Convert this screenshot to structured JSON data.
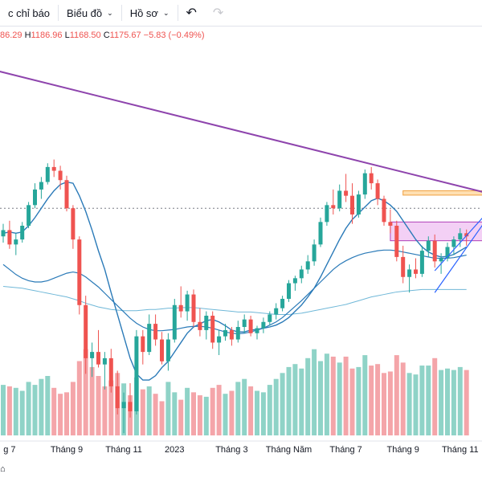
{
  "toolbar": {
    "indicators_label": "c chỉ báo",
    "chart_label": "Biểu đồ",
    "profile_label": "Hồ sơ",
    "chart_chevron": "⌄",
    "profile_chevron": "⌄",
    "undo_glyph": "↶",
    "redo_glyph": "↷"
  },
  "legend": {
    "open_value": "86.29",
    "high_prefix": "H",
    "high_value": "1186.96",
    "low_prefix": "L",
    "low_value": "1168.50",
    "close_prefix": "C",
    "close_value": "1175.67",
    "change_value": "−5.83 (−0.49%)"
  },
  "bottom_glyph": "⌂",
  "colors": {
    "up": "#26a69a",
    "down": "#ef5350",
    "vol_up": "#8fd3c7",
    "vol_down": "#f4a5a9",
    "ma_fast": "#2a7ab8",
    "ma_slow": "#70b8d8",
    "trendline": "#8e44ad",
    "zone_orange": "#ffe0b2",
    "zone_purple": "#f3d0f5"
  },
  "chart_data": {
    "type": "candlestick",
    "xlabels": [
      {
        "label": "g 7",
        "i": 1
      },
      {
        "label": "Tháng 9",
        "i": 10
      },
      {
        "label": "Tháng 11",
        "i": 19
      },
      {
        "label": "2023",
        "i": 27
      },
      {
        "label": "Tháng 3",
        "i": 36
      },
      {
        "label": "Tháng Năm",
        "i": 45
      },
      {
        "label": "Tháng 7",
        "i": 54
      },
      {
        "label": "Tháng 9",
        "i": 63
      },
      {
        "label": "Tháng 11",
        "i": 72
      }
    ],
    "ohlc": [
      [
        1245,
        1265,
        1235,
        1255
      ],
      [
        1255,
        1270,
        1225,
        1232
      ],
      [
        1232,
        1250,
        1215,
        1240
      ],
      [
        1240,
        1268,
        1235,
        1262
      ],
      [
        1262,
        1300,
        1258,
        1295
      ],
      [
        1295,
        1330,
        1290,
        1320
      ],
      [
        1320,
        1340,
        1305,
        1332
      ],
      [
        1332,
        1362,
        1328,
        1356
      ],
      [
        1356,
        1368,
        1340,
        1350
      ],
      [
        1350,
        1358,
        1320,
        1335
      ],
      [
        1335,
        1342,
        1285,
        1290
      ],
      [
        1290,
        1295,
        1225,
        1240
      ],
      [
        1240,
        1245,
        1120,
        1135
      ],
      [
        1135,
        1150,
        1025,
        1050
      ],
      [
        1050,
        1075,
        1020,
        1060
      ],
      [
        1060,
        1095,
        1035,
        1040
      ],
      [
        1040,
        1060,
        1000,
        1050
      ],
      [
        1050,
        1065,
        995,
        1005
      ],
      [
        1005,
        1030,
        960,
        970
      ],
      [
        970,
        995,
        930,
        980
      ],
      [
        980,
        1010,
        955,
        965
      ],
      [
        965,
        1095,
        960,
        1085
      ],
      [
        1085,
        1095,
        1040,
        1060
      ],
      [
        1060,
        1120,
        1055,
        1105
      ],
      [
        1105,
        1120,
        1070,
        1080
      ],
      [
        1080,
        1092,
        1040,
        1045
      ],
      [
        1045,
        1090,
        1030,
        1080
      ],
      [
        1080,
        1145,
        1075,
        1135
      ],
      [
        1135,
        1165,
        1115,
        1125
      ],
      [
        1125,
        1158,
        1110,
        1152
      ],
      [
        1152,
        1160,
        1100,
        1108
      ],
      [
        1108,
        1130,
        1085,
        1095
      ],
      [
        1095,
        1125,
        1080,
        1118
      ],
      [
        1118,
        1125,
        1065,
        1075
      ],
      [
        1075,
        1095,
        1055,
        1085
      ],
      [
        1085,
        1105,
        1078,
        1095
      ],
      [
        1095,
        1100,
        1070,
        1080
      ],
      [
        1080,
        1110,
        1075,
        1100
      ],
      [
        1100,
        1120,
        1090,
        1112
      ],
      [
        1112,
        1118,
        1085,
        1090
      ],
      [
        1090,
        1102,
        1080,
        1098
      ],
      [
        1098,
        1115,
        1090,
        1108
      ],
      [
        1108,
        1125,
        1102,
        1120
      ],
      [
        1120,
        1138,
        1112,
        1130
      ],
      [
        1130,
        1150,
        1125,
        1145
      ],
      [
        1145,
        1175,
        1140,
        1170
      ],
      [
        1170,
        1182,
        1158,
        1178
      ],
      [
        1178,
        1198,
        1170,
        1192
      ],
      [
        1192,
        1215,
        1185,
        1205
      ],
      [
        1205,
        1240,
        1198,
        1232
      ],
      [
        1232,
        1275,
        1228,
        1268
      ],
      [
        1268,
        1300,
        1262,
        1295
      ],
      [
        1295,
        1320,
        1280,
        1290
      ],
      [
        1290,
        1328,
        1285,
        1318
      ],
      [
        1318,
        1345,
        1300,
        1310
      ],
      [
        1310,
        1330,
        1265,
        1280
      ],
      [
        1280,
        1318,
        1275,
        1312
      ],
      [
        1312,
        1352,
        1305,
        1346
      ],
      [
        1346,
        1356,
        1320,
        1330
      ],
      [
        1330,
        1336,
        1295,
        1305
      ],
      [
        1305,
        1310,
        1262,
        1268
      ],
      [
        1268,
        1288,
        1250,
        1262
      ],
      [
        1262,
        1270,
        1205,
        1212
      ],
      [
        1212,
        1230,
        1170,
        1180
      ],
      [
        1180,
        1200,
        1155,
        1192
      ],
      [
        1192,
        1210,
        1178,
        1185
      ],
      [
        1185,
        1230,
        1180,
        1222
      ],
      [
        1222,
        1245,
        1212,
        1238
      ],
      [
        1238,
        1248,
        1195,
        1205
      ],
      [
        1205,
        1218,
        1185,
        1210
      ],
      [
        1210,
        1235,
        1205,
        1228
      ],
      [
        1228,
        1245,
        1215,
        1240
      ],
      [
        1240,
        1258,
        1228,
        1250
      ],
      [
        1250,
        1256,
        1230,
        1245
      ]
    ],
    "volume": [
      [
        34,
        1
      ],
      [
        33,
        0
      ],
      [
        32,
        1
      ],
      [
        30,
        1
      ],
      [
        36,
        1
      ],
      [
        34,
        1
      ],
      [
        38,
        1
      ],
      [
        40,
        1
      ],
      [
        32,
        0
      ],
      [
        28,
        0
      ],
      [
        29,
        0
      ],
      [
        36,
        0
      ],
      [
        50,
        0
      ],
      [
        58,
        0
      ],
      [
        46,
        0
      ],
      [
        40,
        0
      ],
      [
        33,
        0
      ],
      [
        37,
        0
      ],
      [
        42,
        0
      ],
      [
        35,
        1
      ],
      [
        27,
        0
      ],
      [
        39,
        1
      ],
      [
        31,
        0
      ],
      [
        33,
        1
      ],
      [
        28,
        0
      ],
      [
        23,
        0
      ],
      [
        36,
        1
      ],
      [
        29,
        1
      ],
      [
        24,
        0
      ],
      [
        32,
        1
      ],
      [
        29,
        0
      ],
      [
        27,
        0
      ],
      [
        26,
        1
      ],
      [
        32,
        0
      ],
      [
        34,
        0
      ],
      [
        28,
        1
      ],
      [
        30,
        0
      ],
      [
        36,
        1
      ],
      [
        38,
        1
      ],
      [
        33,
        0
      ],
      [
        30,
        1
      ],
      [
        29,
        1
      ],
      [
        34,
        1
      ],
      [
        38,
        1
      ],
      [
        42,
        1
      ],
      [
        46,
        1
      ],
      [
        48,
        1
      ],
      [
        45,
        1
      ],
      [
        52,
        1
      ],
      [
        58,
        1
      ],
      [
        50,
        1
      ],
      [
        55,
        1
      ],
      [
        53,
        0
      ],
      [
        49,
        1
      ],
      [
        53,
        0
      ],
      [
        45,
        0
      ],
      [
        46,
        1
      ],
      [
        54,
        1
      ],
      [
        47,
        0
      ],
      [
        48,
        0
      ],
      [
        42,
        0
      ],
      [
        43,
        0
      ],
      [
        54,
        0
      ],
      [
        49,
        0
      ],
      [
        42,
        1
      ],
      [
        41,
        1
      ],
      [
        47,
        1
      ],
      [
        47,
        1
      ],
      [
        52,
        0
      ],
      [
        44,
        1
      ],
      [
        45,
        1
      ],
      [
        44,
        1
      ],
      [
        46,
        1
      ],
      [
        44,
        0
      ]
    ],
    "ma_fast": [
      1250,
      1252,
      1250,
      1252,
      1262,
      1275,
      1290,
      1305,
      1318,
      1328,
      1332,
      1330,
      1310,
      1285,
      1255,
      1222,
      1192,
      1155,
      1120,
      1085,
      1050,
      1025,
      1015,
      1015,
      1022,
      1035,
      1045,
      1060,
      1075,
      1090,
      1100,
      1105,
      1110,
      1112,
      1108,
      1102,
      1095,
      1092,
      1092,
      1095,
      1096,
      1098,
      1100,
      1103,
      1108,
      1115,
      1125,
      1135,
      1148,
      1162,
      1180,
      1200,
      1220,
      1240,
      1258,
      1272,
      1282,
      1292,
      1302,
      1306,
      1302,
      1295,
      1285,
      1270,
      1255,
      1240,
      1228,
      1220,
      1215,
      1212,
      1213,
      1216,
      1222,
      1228
    ],
    "ma_slow": [
      1200,
      1192,
      1184,
      1178,
      1174,
      1172,
      1172,
      1174,
      1178,
      1182,
      1186,
      1188,
      1186,
      1180,
      1172,
      1164,
      1154,
      1144,
      1134,
      1124,
      1114,
      1106,
      1100,
      1096,
      1094,
      1094,
      1095,
      1096,
      1098,
      1100,
      1101,
      1101,
      1100,
      1098,
      1095,
      1092,
      1090,
      1089,
      1090,
      1092,
      1095,
      1098,
      1103,
      1108,
      1115,
      1124,
      1133,
      1142,
      1152,
      1162,
      1172,
      1182,
      1192,
      1200,
      1206,
      1211,
      1215,
      1218,
      1220,
      1222,
      1223,
      1223,
      1222,
      1220,
      1218,
      1216,
      1214,
      1212,
      1210,
      1210,
      1210,
      1211,
      1213,
      1215
    ],
    "ma_long": [
      1165,
      1164,
      1163,
      1162,
      1160,
      1158,
      1156,
      1154,
      1152,
      1150,
      1148,
      1145,
      1142,
      1138,
      1135,
      1132,
      1130,
      1128,
      1127,
      1126,
      1126,
      1126,
      1127,
      1128,
      1128,
      1129,
      1130,
      1130,
      1131,
      1131,
      1131,
      1130,
      1129,
      1128,
      1127,
      1126,
      1125,
      1124,
      1124,
      1124,
      1123,
      1122,
      1121,
      1120,
      1120,
      1120,
      1121,
      1122,
      1124,
      1126,
      1128,
      1130,
      1132,
      1134,
      1136,
      1139,
      1142,
      1145,
      1148,
      1150,
      1152,
      1154,
      1156,
      1157,
      1158,
      1159,
      1160,
      1160,
      1160,
      1160,
      1160,
      1160,
      1160,
      1160
    ],
    "trendline": {
      "from": [
        -1,
        1510
      ],
      "to": [
        76,
        1315
      ]
    },
    "ascending_line": {
      "from": [
        68,
        1155
      ],
      "to": [
        76,
        1270
      ]
    },
    "support_line": {
      "from": [
        68,
        1190
      ],
      "to": [
        76,
        1280
      ]
    },
    "dotted_level": 1290,
    "zones": [
      {
        "name": "orange",
        "i0": 63,
        "i1": 76,
        "y0": 1311,
        "y1": 1318
      },
      {
        "name": "purple",
        "i0": 61,
        "i1": 76,
        "y0": 1238,
        "y1": 1268
      }
    ],
    "ylim": [
      920,
      1550
    ]
  }
}
